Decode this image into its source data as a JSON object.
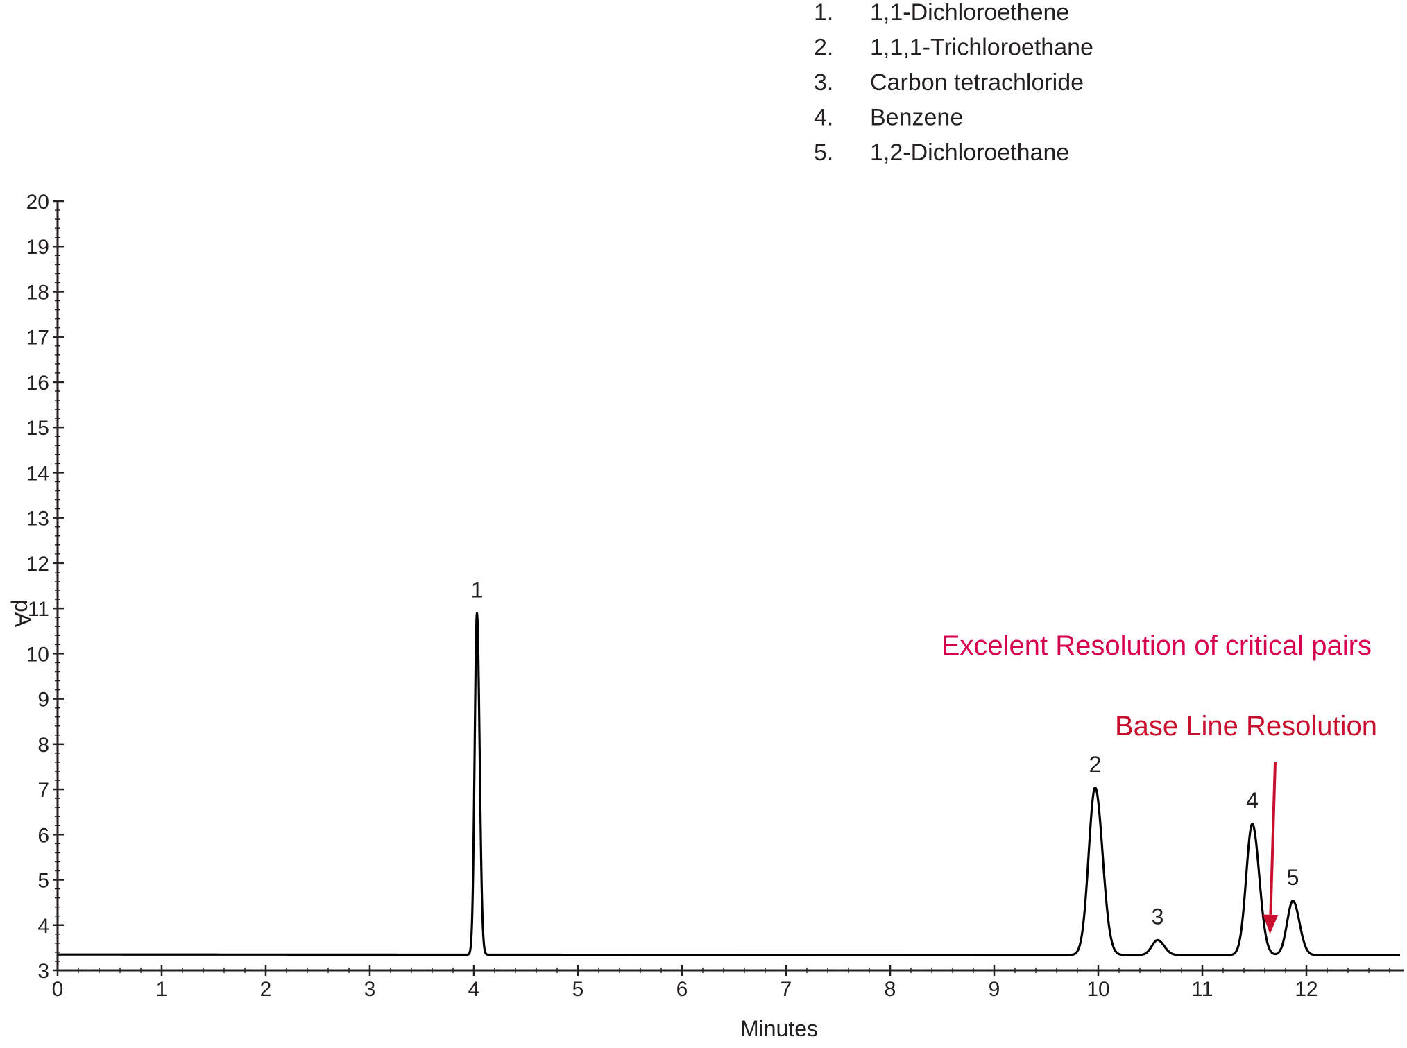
{
  "chart_data": {
    "type": "line",
    "xlabel": "Minutes",
    "ylabel": "pA",
    "xlim": [
      0,
      12.9
    ],
    "ylim": [
      3,
      20
    ],
    "x_ticks": [
      0,
      1,
      2,
      3,
      4,
      5,
      6,
      7,
      8,
      9,
      10,
      11,
      12
    ],
    "y_ticks": [
      3,
      4,
      5,
      6,
      7,
      8,
      9,
      10,
      11,
      12,
      13,
      14,
      15,
      16,
      17,
      18,
      19,
      20
    ],
    "grid": false,
    "baseline": 3.35,
    "line_color": "#000000",
    "peaks": [
      {
        "label": "1",
        "x": 4.03,
        "y": 10.9
      },
      {
        "label": "2",
        "x": 9.97,
        "y": 7.05
      },
      {
        "label": "3",
        "x": 10.57,
        "y": 3.68
      },
      {
        "label": "4",
        "x": 11.48,
        "y": 6.25
      },
      {
        "label": "5",
        "x": 11.87,
        "y": 4.55
      }
    ],
    "legend": {
      "position": "top-center",
      "items": [
        {
          "num": "1.",
          "name": "1,1-Dichloroethene"
        },
        {
          "num": "2.",
          "name": "1,1,1-Trichloroethane"
        },
        {
          "num": "3.",
          "name": "Carbon tetrachloride"
        },
        {
          "num": "4.",
          "name": "Benzene"
        },
        {
          "num": "5.",
          "name": "1,2-Dichloroethane"
        }
      ]
    },
    "annotations": [
      {
        "text": "Excelent Resolution of critical pairs",
        "color": "#d7004f"
      },
      {
        "text": "Base Line Resolution",
        "color": "#c8102e",
        "arrow_to_x": 11.65,
        "arrow_to_y": 3.8,
        "arrow_from_x": 11.7,
        "arrow_from_y": 7.6
      }
    ]
  }
}
